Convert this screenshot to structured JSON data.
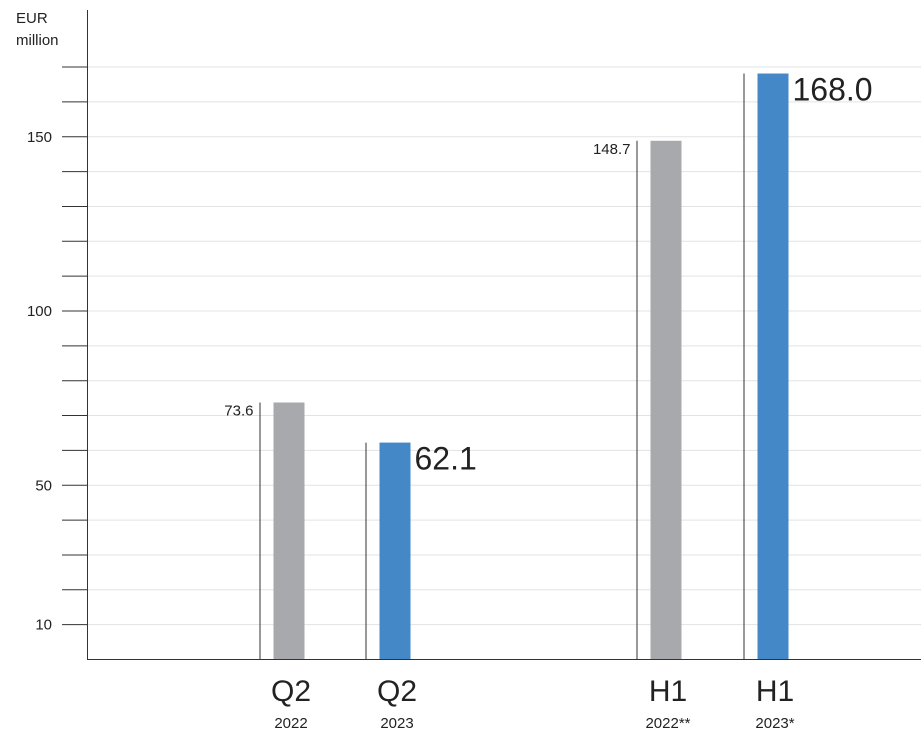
{
  "chart_data": {
    "type": "bar",
    "unit_line1": "EUR",
    "unit_line2": "million",
    "ylim": [
      0,
      170
    ],
    "y_ticks": [
      10,
      50,
      100,
      150
    ],
    "bars": [
      {
        "main": "Q2",
        "sub": "2022",
        "value": 73.6,
        "label": "73.6",
        "color": "#a7a9ac",
        "highlight": false
      },
      {
        "main": "Q2",
        "sub": "2023",
        "value": 62.1,
        "label": "62.1",
        "color": "#4488c8",
        "highlight": true
      },
      {
        "main": "H1",
        "sub": "2022**",
        "value": 148.7,
        "label": "148.7",
        "color": "#a7a9ac",
        "highlight": false
      },
      {
        "main": "H1",
        "sub": "2023*",
        "value": 168.0,
        "label": "168.0",
        "color": "#4488c8",
        "highlight": true
      }
    ]
  }
}
